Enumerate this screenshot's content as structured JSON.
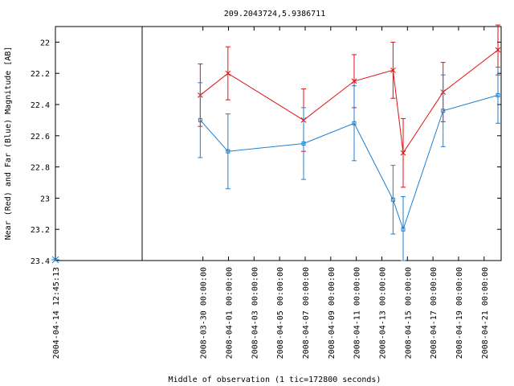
{
  "chart_data": {
    "type": "line",
    "title": "209.2043724,5.9386711",
    "xlabel": "Middle of observation (1 tic=172800 seconds)",
    "ylabel": "Near (Red) and Far (Blue) Magnitude [AB]",
    "y_inverted": true,
    "ylim": [
      23.4,
      21.9
    ],
    "yticks": [
      "22",
      "22.2",
      "22.4",
      "22.6",
      "22.8",
      "23",
      "23.2",
      "23.4"
    ],
    "xlim": [
      "2008-03-26",
      "2008-04-22T08:00:00"
    ],
    "xticks": [
      "2008-03-30 00:00:00",
      "2008-04-01 00:00:00",
      "2008-04-03 00:00:00",
      "2008-04-05 00:00:00",
      "2008-04-07 00:00:00",
      "2008-04-09 00:00:00",
      "2008-04-11 00:00:00",
      "2008-04-13 00:00:00",
      "2008-04-15 00:00:00",
      "2008-04-17 00:00:00",
      "2008-04-19 00:00:00",
      "2008-04-21 00:00:00"
    ],
    "break_label": "2004-04-14 12:45:13",
    "break_point": {
      "mag": 23.42,
      "color": "#1e7fd0"
    },
    "grid": false,
    "series": [
      {
        "color": "#e01010",
        "marker": "x",
        "points": [
          {
            "x": "2008-03-29T19:00:00",
            "y": 22.34,
            "err": 0.2
          },
          {
            "x": "2008-03-31T23:00:00",
            "y": 22.2,
            "err": 0.17
          },
          {
            "x": "2008-04-06T21:00:00",
            "y": 22.5,
            "err": 0.2
          },
          {
            "x": "2008-04-10T20:00:00",
            "y": 22.25,
            "err": 0.17
          },
          {
            "x": "2008-04-13T21:00:00",
            "y": 22.18,
            "err": 0.18
          },
          {
            "x": "2008-04-14T16:00:00",
            "y": 22.71,
            "err": 0.22
          },
          {
            "x": "2008-04-17T19:00:00",
            "y": 22.32,
            "err": 0.19
          },
          {
            "x": "2008-04-22T02:00:00",
            "y": 22.05,
            "err": 0.16
          }
        ]
      },
      {
        "color": "#1e7fd0",
        "marker": "square",
        "points": [
          {
            "x": "2008-03-29T19:00:00",
            "y": 22.5,
            "err": 0.24
          },
          {
            "x": "2008-03-31T23:00:00",
            "y": 22.7,
            "err": 0.24
          },
          {
            "x": "2008-04-06T21:00:00",
            "y": 22.65,
            "err": 0.23
          },
          {
            "x": "2008-04-10T20:00:00",
            "y": 22.52,
            "err": 0.24
          },
          {
            "x": "2008-04-13T21:00:00",
            "y": 23.01,
            "err": 0.22
          },
          {
            "x": "2008-04-14T16:00:00",
            "y": 23.2,
            "err": 0.21
          },
          {
            "x": "2008-04-17T19:00:00",
            "y": 22.44,
            "err": 0.23
          },
          {
            "x": "2008-04-22T02:00:00",
            "y": 22.34,
            "err": 0.18
          }
        ]
      }
    ]
  }
}
